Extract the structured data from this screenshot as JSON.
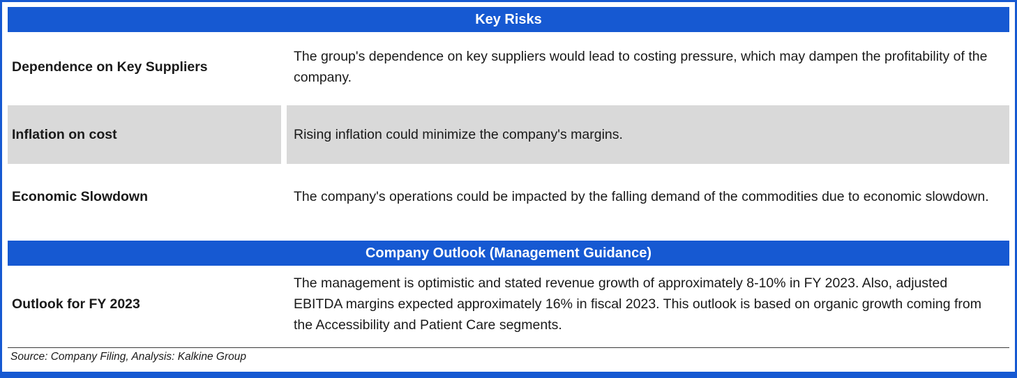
{
  "colors": {
    "accent": "#1659d2",
    "row_shade": "#d9d9d9"
  },
  "key_risks": {
    "title": "Key Risks",
    "rows": [
      {
        "label": "Dependence on Key Suppliers",
        "text": "The group's dependence on key suppliers would lead to costing pressure, which may dampen the profitability of the company.",
        "shaded": false
      },
      {
        "label": "Inflation on cost",
        "text": "Rising  inflation could minimize the company's margins.",
        "shaded": true
      },
      {
        "label": "Economic Slowdown",
        "text": "The company's operations could be impacted by the falling demand of the commodities due to economic slowdown.",
        "shaded": false
      }
    ]
  },
  "outlook": {
    "title": "Company Outlook (Management Guidance)",
    "rows": [
      {
        "label": "Outlook for FY 2023",
        "text": "The management is optimistic and stated revenue growth of approximately 8-10% in FY 2023. Also, adjusted EBITDA margins expected  approximately 16% in fiscal 2023. This outlook is based on organic growth coming from the Accessibility and Patient Care segments."
      }
    ]
  },
  "footer": {
    "source": "Source: Company Filing, Analysis: Kalkine Group"
  }
}
